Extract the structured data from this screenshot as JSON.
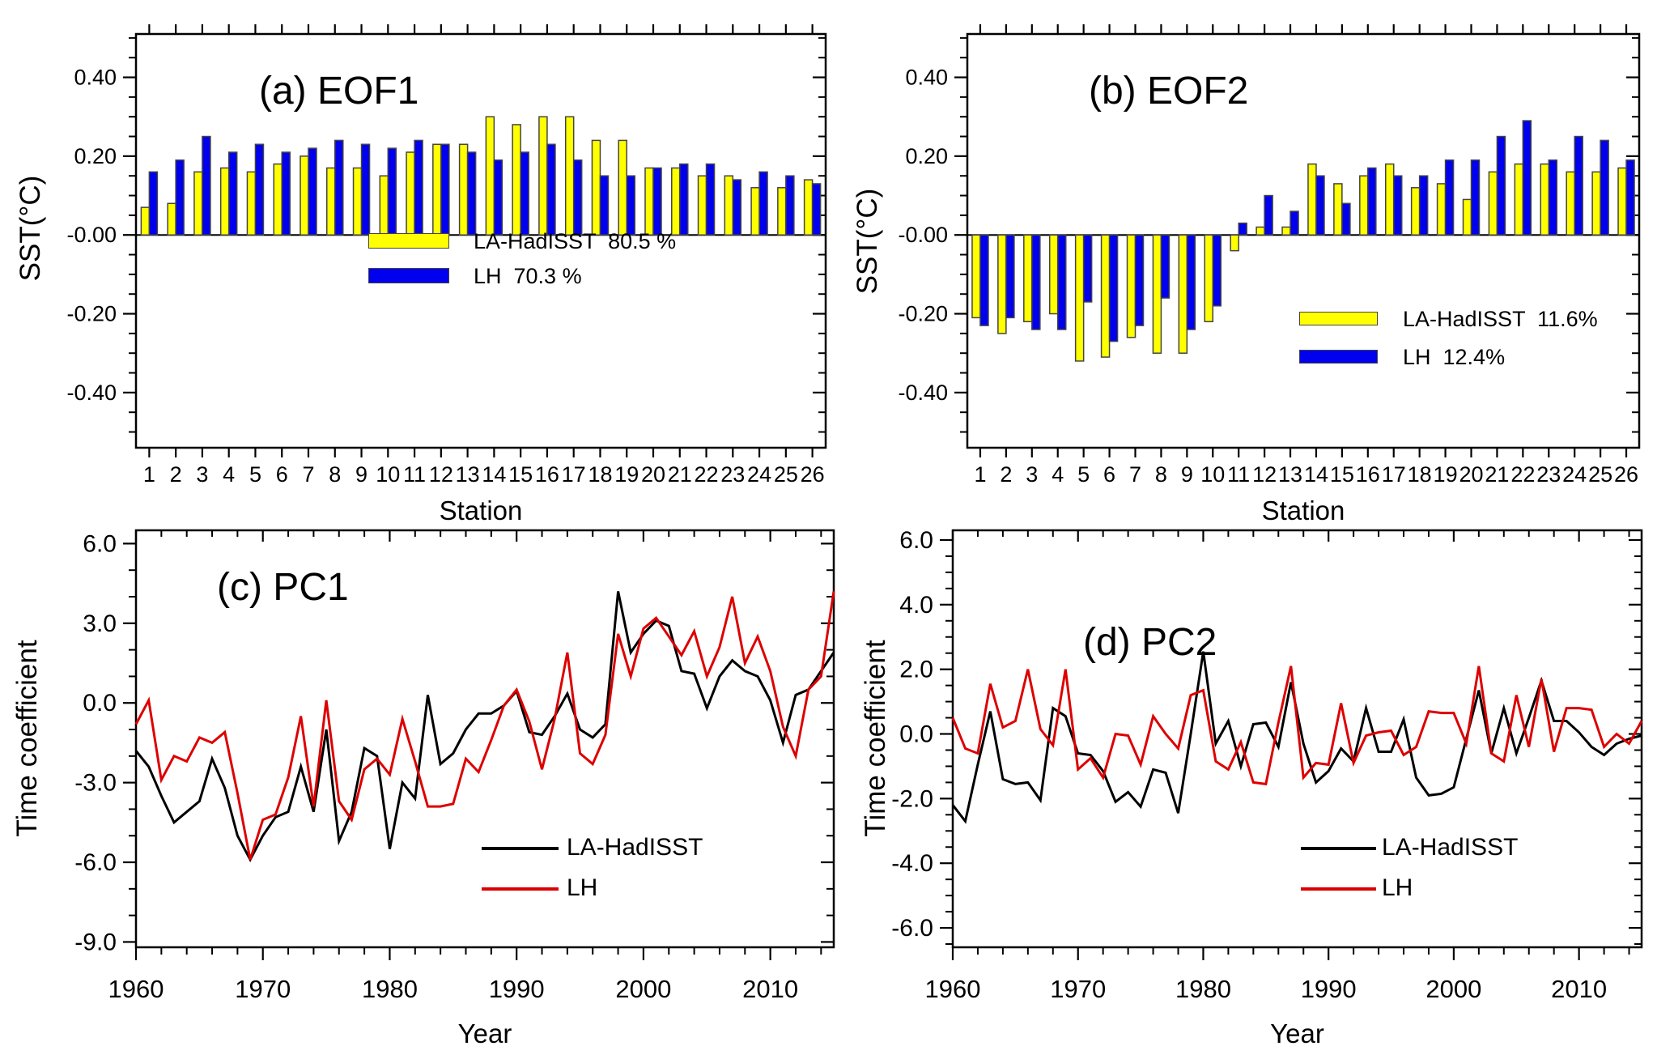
{
  "figure": {
    "background": "#ffffff",
    "colors": {
      "la_hadisst_bar": "#ffff00",
      "lh_bar": "#0000ee",
      "la_hadisst_line": "#000000",
      "lh_line": "#dd0000",
      "axis": "#000000"
    }
  },
  "chart_data": [
    {
      "id": "a",
      "type": "bar",
      "title": "(a) EOF1",
      "xlabel": "Station",
      "ylabel": "SST(°C)",
      "grid": false,
      "legend_position": "inside-lower-middle",
      "categories": [
        "1",
        "2",
        "3",
        "4",
        "5",
        "6",
        "7",
        "8",
        "9",
        "10",
        "11",
        "12",
        "13",
        "14",
        "15",
        "16",
        "17",
        "18",
        "19",
        "20",
        "21",
        "22",
        "23",
        "24",
        "25",
        "26"
      ],
      "ylim": [
        -0.54,
        0.51
      ],
      "yticks": {
        "values": [
          0.4,
          0.2,
          0.0,
          -0.2,
          -0.4
        ],
        "labels": [
          "0.40",
          "0.20",
          "-0.00",
          "-0.20",
          "-0.40"
        ],
        "minor_step": 0.05
      },
      "series": [
        {
          "name": "LA-HadISST",
          "variance_pct": 80.5,
          "legend_label": "LA-HadISST  80.5 %",
          "color": "#ffff00",
          "values": [
            0.07,
            0.08,
            0.16,
            0.17,
            0.16,
            0.18,
            0.2,
            0.17,
            0.17,
            0.15,
            0.21,
            0.23,
            0.23,
            0.3,
            0.28,
            0.3,
            0.3,
            0.24,
            0.24,
            0.17,
            0.17,
            0.15,
            0.15,
            0.12,
            0.12,
            0.14
          ]
        },
        {
          "name": "LH",
          "variance_pct": 70.3,
          "legend_label": "LH  70.3 %",
          "color": "#0000ee",
          "values": [
            0.16,
            0.19,
            0.25,
            0.21,
            0.23,
            0.21,
            0.22,
            0.24,
            0.23,
            0.22,
            0.24,
            0.23,
            0.21,
            0.19,
            0.21,
            0.23,
            0.19,
            0.15,
            0.15,
            0.17,
            0.18,
            0.18,
            0.14,
            0.16,
            0.15,
            0.13
          ]
        }
      ]
    },
    {
      "id": "b",
      "type": "bar",
      "title": "(b) EOF2",
      "xlabel": "Station",
      "ylabel": "SST(°C)",
      "grid": false,
      "legend_position": "inside-lower-middle",
      "categories": [
        "1",
        "2",
        "3",
        "4",
        "5",
        "6",
        "7",
        "8",
        "9",
        "10",
        "11",
        "12",
        "13",
        "14",
        "15",
        "16",
        "17",
        "18",
        "19",
        "20",
        "21",
        "22",
        "23",
        "24",
        "25",
        "26"
      ],
      "ylim": [
        -0.54,
        0.51
      ],
      "yticks": {
        "values": [
          0.4,
          0.2,
          0.0,
          -0.2,
          -0.4
        ],
        "labels": [
          "0.40",
          "0.20",
          "-0.00",
          "-0.20",
          "-0.40"
        ],
        "minor_step": 0.05
      },
      "series": [
        {
          "name": "LA-HadISST",
          "variance_pct": 11.6,
          "legend_label": "LA-HadISST  11.6%",
          "color": "#ffff00",
          "values": [
            -0.21,
            -0.25,
            -0.22,
            -0.2,
            -0.32,
            -0.31,
            -0.26,
            -0.3,
            -0.3,
            -0.22,
            -0.04,
            0.02,
            0.02,
            0.18,
            0.13,
            0.15,
            0.18,
            0.12,
            0.13,
            0.09,
            0.16,
            0.18,
            0.18,
            0.16,
            0.16,
            0.17
          ]
        },
        {
          "name": "LH",
          "variance_pct": 12.4,
          "legend_label": "LH  12.4%",
          "color": "#0000ee",
          "values": [
            -0.23,
            -0.21,
            -0.24,
            -0.24,
            -0.17,
            -0.27,
            -0.23,
            -0.16,
            -0.24,
            -0.18,
            0.03,
            0.1,
            0.06,
            0.15,
            0.08,
            0.17,
            0.15,
            0.15,
            0.19,
            0.19,
            0.25,
            0.29,
            0.19,
            0.25,
            0.24,
            0.19
          ]
        }
      ]
    },
    {
      "id": "c",
      "type": "line",
      "title": "(c) PC1",
      "xlabel": "Year",
      "ylabel": "Time coefficient",
      "grid": false,
      "legend_position": "inside-lower-middle",
      "x": [
        1960,
        1961,
        1962,
        1963,
        1964,
        1965,
        1966,
        1967,
        1968,
        1969,
        1970,
        1971,
        1972,
        1973,
        1974,
        1975,
        1976,
        1977,
        1978,
        1979,
        1980,
        1981,
        1982,
        1983,
        1984,
        1985,
        1986,
        1987,
        1988,
        1989,
        1990,
        1991,
        1992,
        1993,
        1994,
        1995,
        1996,
        1997,
        1998,
        1999,
        2000,
        2001,
        2002,
        2003,
        2004,
        2005,
        2006,
        2007,
        2008,
        2009,
        2010,
        2011,
        2012,
        2013,
        2014,
        2015
      ],
      "ylim": [
        -9.2,
        6.5
      ],
      "yticks": {
        "values": [
          6,
          3,
          0,
          -3,
          -6,
          -9
        ],
        "labels": [
          "6.0",
          "3.0",
          "0.0",
          "-3.0",
          "-6.0",
          "-9.0"
        ],
        "minor_step": 1
      },
      "xticks": {
        "values": [
          1960,
          1970,
          1980,
          1990,
          2000,
          2010
        ],
        "labels": [
          "1960",
          "1970",
          "1980",
          "1990",
          "2000",
          "2010"
        ],
        "minor_step": 2
      },
      "series": [
        {
          "name": "LA-HadISST",
          "legend_label": "LA-HadISST",
          "color": "#000000",
          "values": [
            -1.8,
            -2.4,
            -3.5,
            -4.5,
            -4.1,
            -3.7,
            -2.1,
            -3.2,
            -5.0,
            -5.9,
            -5.0,
            -4.3,
            -4.1,
            -2.4,
            -4.1,
            -1.0,
            -5.2,
            -4.1,
            -1.7,
            -2.0,
            -5.5,
            -3.0,
            -3.6,
            0.3,
            -2.3,
            -1.9,
            -1.0,
            -0.4,
            -0.4,
            -0.1,
            0.45,
            -1.1,
            -1.2,
            -0.5,
            0.35,
            -1.0,
            -1.3,
            -0.8,
            4.2,
            1.9,
            2.6,
            3.1,
            2.9,
            1.2,
            1.1,
            -0.2,
            1.0,
            1.6,
            1.2,
            1.0,
            0.1,
            -1.5,
            0.3,
            0.5,
            1.2,
            1.9
          ]
        },
        {
          "name": "LH",
          "legend_label": "LH",
          "color": "#dd0000",
          "values": [
            -0.8,
            0.1,
            -2.9,
            -2.0,
            -2.2,
            -1.3,
            -1.5,
            -1.1,
            -3.4,
            -5.9,
            -4.4,
            -4.2,
            -2.8,
            -0.5,
            -3.9,
            0.1,
            -3.7,
            -4.4,
            -2.5,
            -2.1,
            -2.7,
            -0.6,
            -2.2,
            -3.9,
            -3.9,
            -3.8,
            -2.1,
            -2.6,
            -1.4,
            -0.1,
            0.5,
            -0.7,
            -2.5,
            -0.6,
            1.9,
            -1.9,
            -2.3,
            -1.2,
            2.6,
            1.0,
            2.8,
            3.2,
            2.5,
            1.8,
            2.7,
            1.0,
            2.1,
            4.0,
            1.5,
            2.5,
            1.2,
            -0.9,
            -2.0,
            0.5,
            1.0,
            4.2
          ]
        }
      ]
    },
    {
      "id": "d",
      "type": "line",
      "title": "(d) PC2",
      "xlabel": "Year",
      "ylabel": "Time coefficient",
      "grid": false,
      "legend_position": "inside-lower-middle",
      "x": [
        1960,
        1961,
        1962,
        1963,
        1964,
        1965,
        1966,
        1967,
        1968,
        1969,
        1970,
        1971,
        1972,
        1973,
        1974,
        1975,
        1976,
        1977,
        1978,
        1979,
        1980,
        1981,
        1982,
        1983,
        1984,
        1985,
        1986,
        1987,
        1988,
        1989,
        1990,
        1991,
        1992,
        1993,
        1994,
        1995,
        1996,
        1997,
        1998,
        1999,
        2000,
        2001,
        2002,
        2003,
        2004,
        2005,
        2006,
        2007,
        2008,
        2009,
        2010,
        2011,
        2012,
        2013,
        2014,
        2015
      ],
      "ylim": [
        -6.6,
        6.3
      ],
      "yticks": {
        "values": [
          6,
          4,
          2,
          0,
          -2,
          -4,
          -6
        ],
        "labels": [
          "6.0",
          "4.0",
          "2.0",
          "0.0",
          "-2.0",
          "-4.0",
          "-6.0"
        ],
        "minor_step": 0.5
      },
      "xticks": {
        "values": [
          1960,
          1970,
          1980,
          1990,
          2000,
          2010
        ],
        "labels": [
          "1960",
          "1970",
          "1980",
          "1990",
          "2000",
          "2010"
        ],
        "minor_step": 2
      },
      "series": [
        {
          "name": "LA-HadISST",
          "legend_label": "LA-HadISST",
          "color": "#000000",
          "values": [
            -2.2,
            -2.7,
            -0.95,
            0.7,
            -1.4,
            -1.55,
            -1.5,
            -2.05,
            0.8,
            0.55,
            -0.6,
            -0.65,
            -1.15,
            -2.1,
            -1.8,
            -2.25,
            -1.1,
            -1.2,
            -2.45,
            0.0,
            2.55,
            -0.3,
            0.4,
            -1.0,
            0.3,
            0.35,
            -0.4,
            1.6,
            -0.3,
            -1.5,
            -1.15,
            -0.45,
            -0.85,
            0.8,
            -0.55,
            -0.55,
            0.45,
            -1.35,
            -1.9,
            -1.85,
            -1.65,
            -0.15,
            1.35,
            -0.6,
            0.8,
            -0.6,
            0.5,
            1.65,
            0.4,
            0.4,
            0.05,
            -0.4,
            -0.65,
            -0.3,
            -0.15,
            -0.05
          ]
        },
        {
          "name": "LH",
          "legend_label": "LH",
          "color": "#dd0000",
          "values": [
            0.5,
            -0.45,
            -0.6,
            1.55,
            0.2,
            0.4,
            2.0,
            0.15,
            -0.35,
            2.0,
            -1.1,
            -0.75,
            -1.35,
            0.0,
            -0.05,
            -0.95,
            0.55,
            0.0,
            -0.45,
            1.2,
            1.35,
            -0.85,
            -1.1,
            -0.25,
            -1.5,
            -1.55,
            0.35,
            2.1,
            -1.35,
            -0.9,
            -0.95,
            0.95,
            -0.9,
            -0.05,
            0.05,
            0.1,
            -0.65,
            -0.4,
            0.7,
            0.65,
            0.65,
            -0.3,
            2.1,
            -0.6,
            -0.85,
            1.2,
            -0.4,
            1.7,
            -0.55,
            0.8,
            0.8,
            0.75,
            -0.4,
            0.0,
            -0.3,
            0.4
          ]
        }
      ]
    }
  ]
}
